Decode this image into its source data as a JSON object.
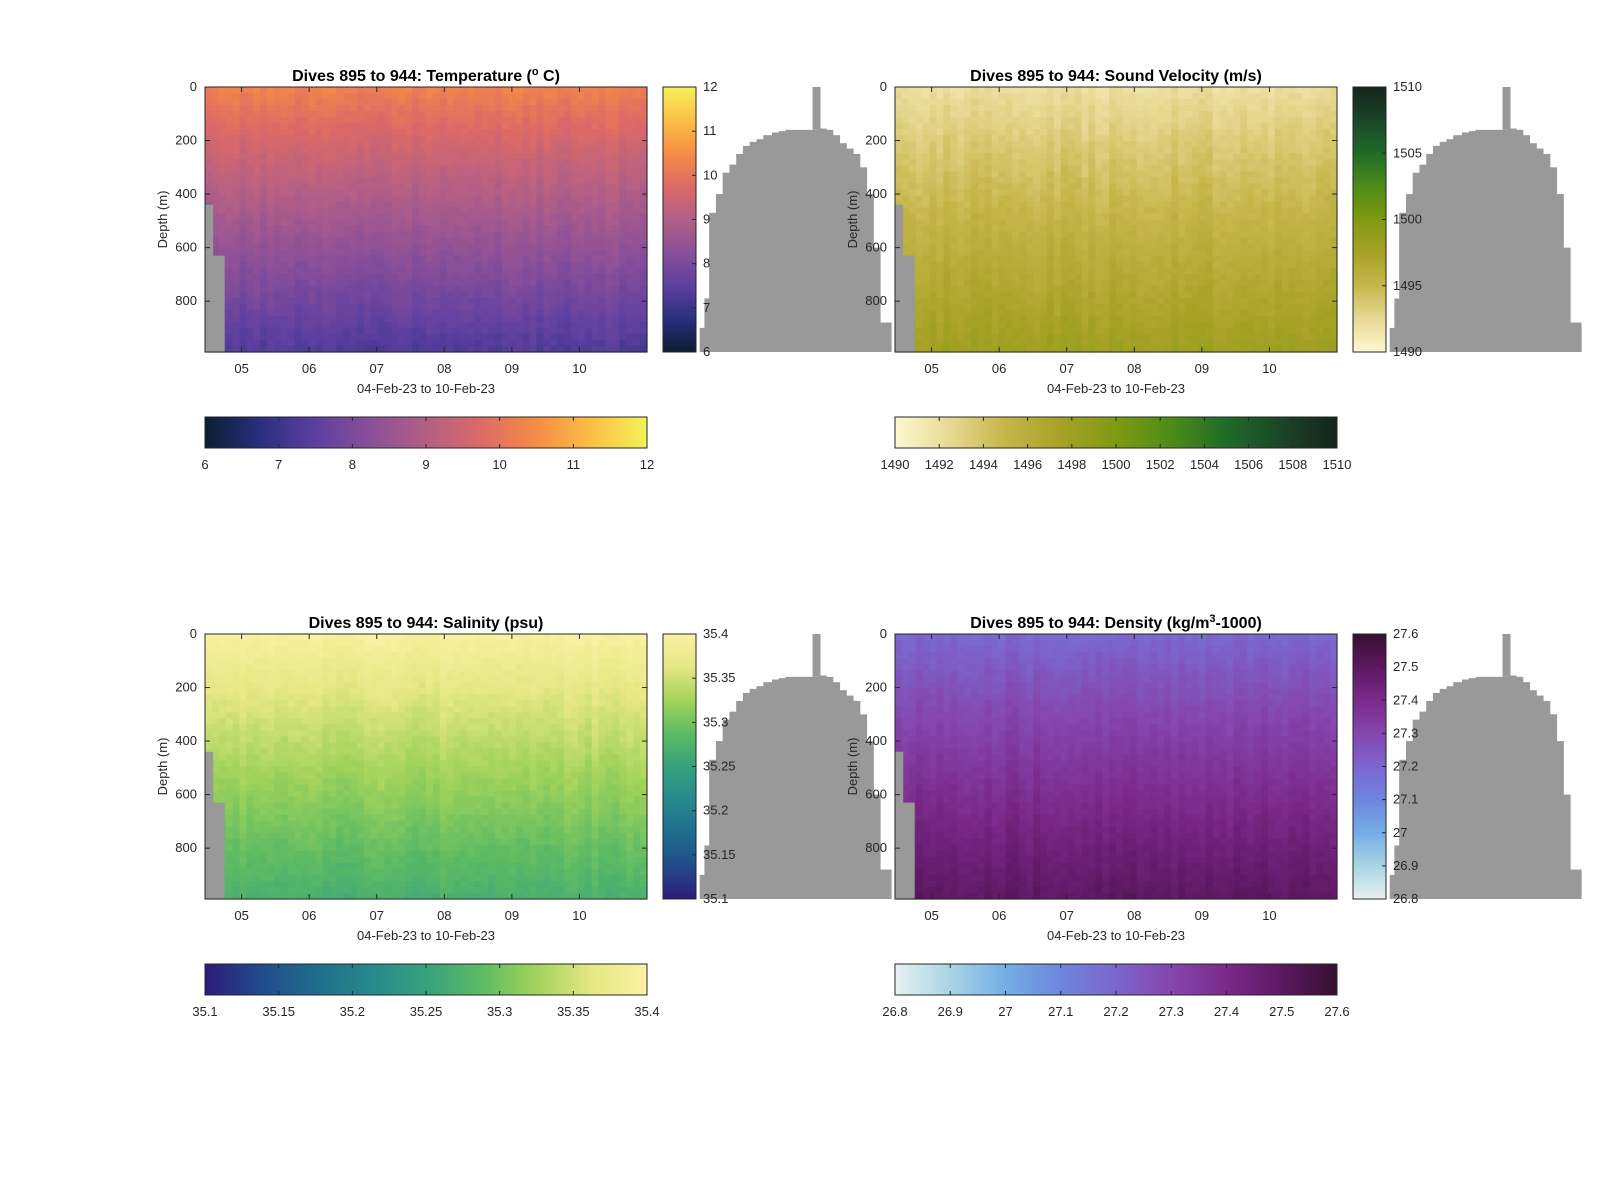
{
  "figure": {
    "background": "#ffffff",
    "mask_color": "#999999"
  },
  "chart_data": [
    {
      "type": "heatmap",
      "title_prefix": "Dives 895 to 944: Temperature (",
      "title_sup": "o",
      "title_suffix": " C)",
      "xlabel": "04-Feb-23 to 10-Feb-23",
      "ylabel": "Depth (m)",
      "x_ticks": [
        "05",
        "06",
        "07",
        "08",
        "09",
        "10"
      ],
      "xlim": [
        "2023-02-04T11:00",
        "2023-02-11T00:00"
      ],
      "y_ticks": [
        0,
        200,
        400,
        600,
        800
      ],
      "ylim": [
        0,
        990
      ],
      "y_reversed": true,
      "grid": false,
      "clim": [
        6,
        12
      ],
      "colorbar_ticks": [
        "6",
        "7",
        "8",
        "9",
        "10",
        "11",
        "12"
      ],
      "horizontal_colorbar_ticks": [
        "6",
        "7",
        "8",
        "9",
        "10",
        "11",
        "12"
      ],
      "colormap": [
        "#0b1e30",
        "#2a2f7e",
        "#5d3fa0",
        "#8a4f99",
        "#b35f86",
        "#dc6a66",
        "#f68d45",
        "#fbbf45",
        "#f4f257"
      ],
      "surface_value": 10.3,
      "bottom_value": 7.3
    },
    {
      "type": "heatmap",
      "title_prefix": "Dives 895 to 944: Sound Velocity (m/s)",
      "title_sup": "",
      "title_suffix": "",
      "xlabel": "04-Feb-23 to 10-Feb-23",
      "ylabel": "Depth (m)",
      "x_ticks": [
        "05",
        "06",
        "07",
        "08",
        "09",
        "10"
      ],
      "xlim": [
        "2023-02-04T11:00",
        "2023-02-11T00:00"
      ],
      "y_ticks": [
        0,
        200,
        400,
        600,
        800
      ],
      "ylim": [
        0,
        990
      ],
      "y_reversed": true,
      "grid": false,
      "clim": [
        1490,
        1510
      ],
      "colorbar_ticks": [
        "1490",
        "1495",
        "1500",
        "1505",
        "1510"
      ],
      "horizontal_colorbar_ticks": [
        "1490",
        "1492",
        "1494",
        "1496",
        "1498",
        "1500",
        "1502",
        "1504",
        "1506",
        "1508",
        "1510"
      ],
      "colormap": [
        "#fdf8cf",
        "#e7d993",
        "#c7b54a",
        "#a6a226",
        "#7f9a12",
        "#4d8c17",
        "#1f6b28",
        "#1b4527",
        "#15231c"
      ],
      "surface_value": 1492.0,
      "bottom_value": 1498.0
    },
    {
      "type": "heatmap",
      "title_prefix": "Dives 895 to 944: Salinity (psu)",
      "title_sup": "",
      "title_suffix": "",
      "xlabel": "04-Feb-23 to 10-Feb-23",
      "ylabel": "Depth (m)",
      "x_ticks": [
        "05",
        "06",
        "07",
        "08",
        "09",
        "10"
      ],
      "xlim": [
        "2023-02-04T11:00",
        "2023-02-11T00:00"
      ],
      "y_ticks": [
        0,
        200,
        400,
        600,
        800
      ],
      "ylim": [
        0,
        990
      ],
      "y_reversed": true,
      "grid": false,
      "clim": [
        35.1,
        35.4
      ],
      "colorbar_ticks": [
        "35.1",
        "35.15",
        "35.2",
        "35.25",
        "35.3",
        "35.35",
        "35.4"
      ],
      "horizontal_colorbar_ticks": [
        "35.1",
        "35.15",
        "35.2",
        "35.25",
        "35.3",
        "35.35",
        "35.4"
      ],
      "colormap": [
        "#2c1b7a",
        "#214b8b",
        "#1e6d8c",
        "#26898b",
        "#36a27e",
        "#5dbb63",
        "#a2d35b",
        "#e5e783",
        "#fbf2a4"
      ],
      "surface_value": 35.395,
      "bottom_value": 35.27
    },
    {
      "type": "heatmap",
      "title_prefix": "Dives 895 to 944: Density (kg/m",
      "title_sup": "3",
      "title_suffix": "-1000)",
      "xlabel": "04-Feb-23 to 10-Feb-23",
      "ylabel": "Depth (m)",
      "x_ticks": [
        "05",
        "06",
        "07",
        "08",
        "09",
        "10"
      ],
      "xlim": [
        "2023-02-04T11:00",
        "2023-02-11T00:00"
      ],
      "y_ticks": [
        0,
        200,
        400,
        600,
        800
      ],
      "ylim": [
        0,
        990
      ],
      "y_reversed": true,
      "grid": false,
      "clim": [
        26.8,
        27.6
      ],
      "colorbar_ticks": [
        "26.8",
        "26.9",
        "27",
        "27.1",
        "27.2",
        "27.3",
        "27.4",
        "27.5",
        "27.6"
      ],
      "horizontal_colorbar_ticks": [
        "26.8",
        "26.9",
        "27",
        "27.1",
        "27.2",
        "27.3",
        "27.4",
        "27.5",
        "27.6"
      ],
      "colormap": [
        "#e8f1f0",
        "#a9d4e5",
        "#73aee3",
        "#6e86dd",
        "#7b66cd",
        "#8546ad",
        "#7a2a8a",
        "#5c1861",
        "#35102f"
      ],
      "surface_value": 27.19,
      "bottom_value": 27.5
    }
  ]
}
